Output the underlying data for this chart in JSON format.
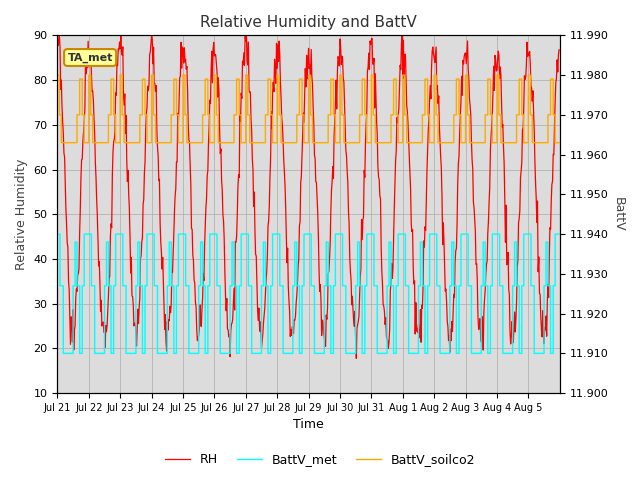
{
  "title": "Relative Humidity and BattV",
  "ylabel_left": "Relative Humidity",
  "ylabel_right": "BattV",
  "xlabel": "Time",
  "ylim_left": [
    10,
    90
  ],
  "ylim_right": [
    11.9,
    11.99
  ],
  "yticks_left": [
    10,
    20,
    30,
    40,
    50,
    60,
    70,
    80,
    90
  ],
  "yticks_right": [
    11.9,
    11.91,
    11.92,
    11.93,
    11.94,
    11.95,
    11.96,
    11.97,
    11.98,
    11.99
  ],
  "xtick_labels": [
    "Jul 21",
    "Jul 22",
    "Jul 23",
    "Jul 24",
    "Jul 25",
    "Jul 26",
    "Jul 27",
    "Jul 28",
    "Jul 29",
    "Jul 30",
    "Jul 31",
    "Aug 1",
    "Aug 2",
    "Aug 3",
    "Aug 4",
    "Aug 5"
  ],
  "color_RH": "#ff0000",
  "color_BattV_met": "#00ffff",
  "color_BattV_soilco2": "#ffaa00",
  "annotation_text": "TA_met",
  "annotation_bg": "#ffff99",
  "annotation_border": "#cc8800",
  "bg_color": "#dcdcdc",
  "legend_labels": [
    "RH",
    "BattV_met",
    "BattV_soilco2"
  ],
  "n_days": 16,
  "pts_per_day": 48,
  "rh_night_high": 85,
  "rh_day_low": 25,
  "battv_met_high": 11.94,
  "battv_met_mid": 11.927,
  "battv_met_low": 11.91,
  "battv_soilco2_high": 11.98,
  "battv_soilco2_mid": 11.97,
  "battv_soilco2_low": 11.96
}
